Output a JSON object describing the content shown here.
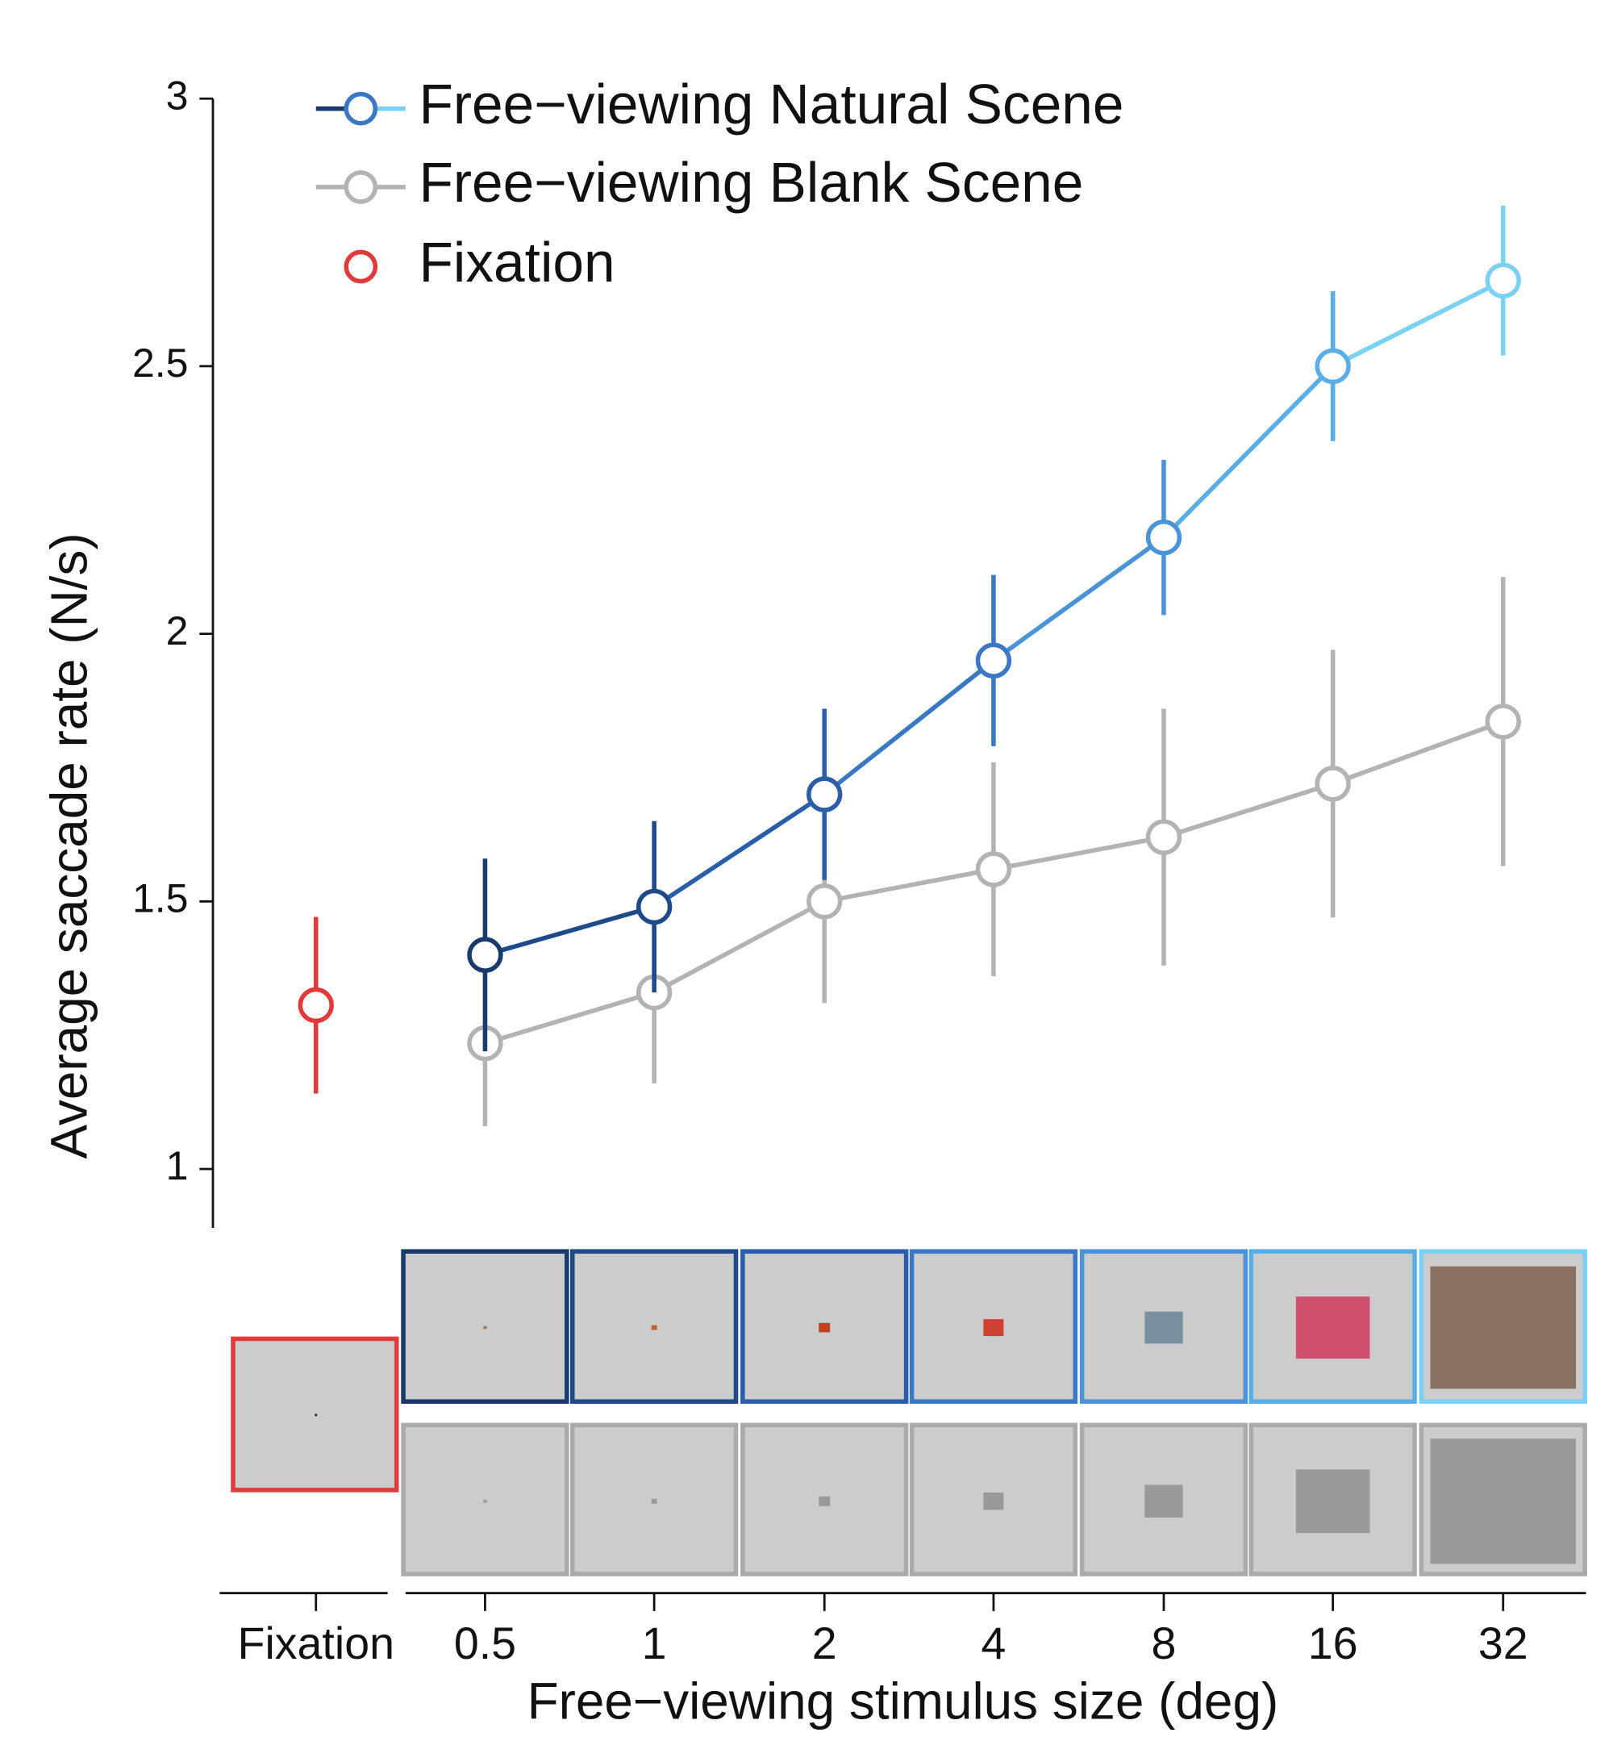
{
  "chart_data": {
    "type": "line",
    "ylabel": "Average saccade rate (N/s)",
    "xlabel": "Free−viewing stimulus size (deg)",
    "categories": [
      "Fixation",
      "0.5",
      "1",
      "2",
      "4",
      "8",
      "16",
      "32"
    ],
    "ylim": [
      0.89,
      3
    ],
    "yticks": [
      1,
      1.5,
      2,
      2.5,
      3
    ],
    "legend": "upper left",
    "series": [
      {
        "name": "Free−viewing Natural Scene",
        "color": "#3a78c4",
        "colors": [
          null,
          "#1a3a6e",
          "#1f4a8a",
          "#2b5ea8",
          "#3a78c4",
          "#4b93d8",
          "#5aaee8",
          "#7dd0f5"
        ],
        "values": [
          null,
          1.4,
          1.49,
          1.7,
          1.95,
          2.18,
          2.5,
          2.66
        ],
        "errors": [
          null,
          0.18,
          0.16,
          0.16,
          0.16,
          0.145,
          0.14,
          0.14
        ]
      },
      {
        "name": "Free−viewing Blank Scene",
        "color": "#b3b3b3",
        "values": [
          null,
          1.235,
          1.33,
          1.5,
          1.56,
          1.62,
          1.72,
          1.836
        ],
        "errors": [
          null,
          0.155,
          0.17,
          0.19,
          0.2,
          0.24,
          0.25,
          0.27
        ]
      },
      {
        "name": "Fixation",
        "color": "#e03a3a",
        "values": [
          1.306,
          null,
          null,
          null,
          null,
          null,
          null,
          null
        ],
        "errors": [
          0.165,
          null,
          null,
          null,
          null,
          null,
          null,
          null
        ]
      }
    ]
  }
}
